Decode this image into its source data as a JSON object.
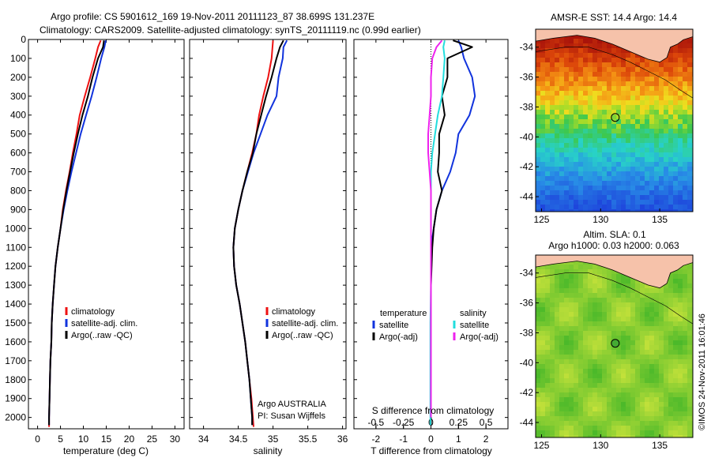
{
  "header": {
    "title_line1": "Argo profile: CS 5901612_169 19-Nov-2011 20111123_87 38.699S 131.237E",
    "title_line2": "Climatology: CARS2009. Satellite-adjusted climatology: synTS_20111119.nc (0.99d earlier)"
  },
  "side_text": "©IMOS 24-Nov-2011 16:01:46",
  "colors": {
    "climatology": "#ee1111",
    "satellite": "#1133dd",
    "argo": "#000000",
    "salinity_satellite": "#22dddd",
    "salinity_argo": "#ee22ee",
    "land": "#f6c2aa"
  },
  "chart_data": [
    {
      "id": "temperature",
      "type": "line",
      "xlabel": "temperature (deg C)",
      "x_ticks": [
        0,
        5,
        10,
        15,
        20,
        25,
        30
      ],
      "y_ticks": [
        0,
        100,
        200,
        300,
        400,
        500,
        600,
        700,
        800,
        900,
        1000,
        1100,
        1200,
        1300,
        1400,
        1500,
        1600,
        1700,
        1800,
        1900,
        2000
      ],
      "xlim": [
        -2,
        32
      ],
      "ylim": [
        0,
        2060
      ],
      "y_reversed": true,
      "legend": [
        "climatology",
        "satellite-adj. clim.",
        "Argo(..raw -QC)"
      ],
      "series": [
        {
          "name": "climatology",
          "color": "#ee1111",
          "points": [
            [
              13.8,
              5
            ],
            [
              13.2,
              40
            ],
            [
              12.6,
              100
            ],
            [
              11.5,
              200
            ],
            [
              10.3,
              300
            ],
            [
              9.2,
              400
            ],
            [
              8.5,
              500
            ],
            [
              7.7,
              600
            ],
            [
              7.0,
              700
            ],
            [
              6.2,
              800
            ],
            [
              5.5,
              900
            ],
            [
              5.0,
              1000
            ],
            [
              4.4,
              1100
            ],
            [
              3.9,
              1200
            ],
            [
              3.6,
              1300
            ],
            [
              3.3,
              1400
            ],
            [
              3.1,
              1500
            ],
            [
              3.0,
              1600
            ],
            [
              2.8,
              1700
            ],
            [
              2.7,
              1800
            ],
            [
              2.6,
              1900
            ],
            [
              2.5,
              2000
            ],
            [
              2.5,
              2050
            ]
          ]
        },
        {
          "name": "satellite-adj. clim.",
          "color": "#1133dd",
          "points": [
            [
              14.9,
              5
            ],
            [
              14.6,
              40
            ],
            [
              13.9,
              100
            ],
            [
              12.9,
              200
            ],
            [
              11.8,
              300
            ],
            [
              10.6,
              400
            ],
            [
              9.4,
              500
            ],
            [
              8.4,
              600
            ],
            [
              7.4,
              700
            ],
            [
              6.5,
              800
            ],
            [
              5.7,
              900
            ],
            [
              5.0,
              1000
            ],
            [
              4.4,
              1100
            ],
            [
              3.9,
              1200
            ],
            [
              3.6,
              1300
            ],
            [
              3.3,
              1400
            ],
            [
              3.1,
              1500
            ],
            [
              3.0,
              1600
            ],
            [
              2.8,
              1700
            ],
            [
              2.7,
              1800
            ],
            [
              2.6,
              1900
            ],
            [
              2.5,
              2000
            ],
            [
              2.5,
              2040
            ]
          ]
        },
        {
          "name": "Argo(..raw -QC)",
          "color": "#000000",
          "points": [
            [
              14.5,
              5
            ],
            [
              14.3,
              40
            ],
            [
              13.2,
              100
            ],
            [
              12.0,
              200
            ],
            [
              11.0,
              300
            ],
            [
              9.8,
              400
            ],
            [
              8.8,
              500
            ],
            [
              7.9,
              600
            ],
            [
              7.1,
              700
            ],
            [
              6.3,
              800
            ],
            [
              5.6,
              900
            ],
            [
              5.0,
              1000
            ],
            [
              4.4,
              1100
            ],
            [
              3.9,
              1200
            ],
            [
              3.6,
              1300
            ],
            [
              3.3,
              1400
            ],
            [
              3.1,
              1500
            ],
            [
              3.0,
              1600
            ],
            [
              2.8,
              1700
            ],
            [
              2.7,
              1800
            ],
            [
              2.6,
              1900
            ],
            [
              2.5,
              2000
            ],
            [
              2.5,
              2040
            ]
          ]
        }
      ]
    },
    {
      "id": "salinity",
      "type": "line",
      "xlabel": "salinity",
      "x_ticks": [
        34,
        34.5,
        35,
        35.5,
        36
      ],
      "x_tick_labels": [
        "34",
        "34.5",
        "35",
        "35.5",
        "36"
      ],
      "xlim": [
        33.8,
        36.05
      ],
      "ylim": [
        0,
        2060
      ],
      "y_reversed": true,
      "legend": [
        "climatology",
        "satellite-adj. clim.",
        "Argo(..raw -QC)"
      ],
      "annotation": [
        "Argo AUSTRALIA",
        "PI: Susan Wijffels"
      ],
      "series": [
        {
          "name": "climatology",
          "color": "#ee1111",
          "points": [
            [
              35.0,
              5
            ],
            [
              34.98,
              100
            ],
            [
              34.93,
              200
            ],
            [
              34.86,
              300
            ],
            [
              34.8,
              400
            ],
            [
              34.76,
              500
            ],
            [
              34.7,
              600
            ],
            [
              34.63,
              700
            ],
            [
              34.56,
              800
            ],
            [
              34.5,
              900
            ],
            [
              34.45,
              1000
            ],
            [
              34.43,
              1100
            ],
            [
              34.44,
              1200
            ],
            [
              34.47,
              1300
            ],
            [
              34.52,
              1400
            ],
            [
              34.56,
              1500
            ],
            [
              34.6,
              1600
            ],
            [
              34.63,
              1700
            ],
            [
              34.66,
              1800
            ],
            [
              34.69,
              1900
            ],
            [
              34.71,
              2000
            ],
            [
              34.72,
              2050
            ]
          ]
        },
        {
          "name": "satellite-adj. clim.",
          "color": "#1133dd",
          "points": [
            [
              35.2,
              5
            ],
            [
              35.15,
              40
            ],
            [
              35.14,
              100
            ],
            [
              35.08,
              200
            ],
            [
              35.05,
              300
            ],
            [
              34.92,
              400
            ],
            [
              34.82,
              500
            ],
            [
              34.72,
              600
            ],
            [
              34.64,
              700
            ],
            [
              34.56,
              800
            ],
            [
              34.5,
              900
            ],
            [
              34.45,
              1000
            ],
            [
              34.43,
              1100
            ],
            [
              34.44,
              1200
            ],
            [
              34.47,
              1300
            ],
            [
              34.52,
              1400
            ],
            [
              34.56,
              1500
            ],
            [
              34.6,
              1600
            ],
            [
              34.63,
              1700
            ],
            [
              34.66,
              1800
            ],
            [
              34.68,
              1900
            ],
            [
              34.7,
              2000
            ],
            [
              34.7,
              2040
            ]
          ]
        },
        {
          "name": "Argo(..raw -QC)",
          "color": "#000000",
          "points": [
            [
              35.15,
              5
            ],
            [
              35.1,
              40
            ],
            [
              35.05,
              100
            ],
            [
              34.98,
              200
            ],
            [
              34.9,
              300
            ],
            [
              34.83,
              400
            ],
            [
              34.76,
              500
            ],
            [
              34.71,
              600
            ],
            [
              34.63,
              700
            ],
            [
              34.56,
              800
            ],
            [
              34.5,
              900
            ],
            [
              34.45,
              1000
            ],
            [
              34.43,
              1100
            ],
            [
              34.44,
              1200
            ],
            [
              34.47,
              1300
            ],
            [
              34.52,
              1400
            ],
            [
              34.56,
              1500
            ],
            [
              34.6,
              1600
            ],
            [
              34.63,
              1700
            ],
            [
              34.66,
              1800
            ],
            [
              34.68,
              1900
            ],
            [
              34.7,
              2000
            ],
            [
              34.7,
              2040
            ]
          ]
        }
      ]
    },
    {
      "id": "difference",
      "type": "line",
      "xlabel": "T difference from climatology",
      "x_ticks": [
        -2,
        -1,
        0,
        1,
        2
      ],
      "x2label": "S difference from climatology",
      "x2_ticks": [
        -0.5,
        -0.25,
        0,
        0.25,
        0.5
      ],
      "x2_tick_labels": [
        "-0.5",
        "-0.25",
        "0",
        "0.25",
        "0.5"
      ],
      "xlim": [
        -2.8,
        2.8
      ],
      "ylim": [
        0,
        2060
      ],
      "y_reversed": true,
      "legend_temperature_title": "temperature",
      "legend_salinity_title": "salinity",
      "legend_temperature": [
        "satellite",
        "Argo(-adj)"
      ],
      "legend_salinity": [
        "satellite",
        "Argo(-adj)"
      ],
      "series": [
        {
          "name": "satellite",
          "color": "#1133dd",
          "points": [
            [
              1.0,
              5
            ],
            [
              1.1,
              40
            ],
            [
              1.2,
              100
            ],
            [
              1.5,
              200
            ],
            [
              1.6,
              300
            ],
            [
              1.4,
              400
            ],
            [
              1.0,
              500
            ],
            [
              0.9,
              600
            ],
            [
              0.7,
              700
            ],
            [
              0.4,
              800
            ],
            [
              0.2,
              900
            ],
            [
              0.1,
              1000
            ],
            [
              0.0,
              1100
            ],
            [
              0.0,
              1300
            ],
            [
              0.0,
              1600
            ],
            [
              0.0,
              2000
            ],
            [
              0.0,
              2040
            ]
          ]
        },
        {
          "name": "Argo(-adj)",
          "color": "#000000",
          "points": [
            [
              0.8,
              5
            ],
            [
              1.5,
              40
            ],
            [
              0.6,
              100
            ],
            [
              0.6,
              200
            ],
            [
              0.4,
              300
            ],
            [
              0.5,
              400
            ],
            [
              0.3,
              500
            ],
            [
              0.3,
              600
            ],
            [
              0.25,
              700
            ],
            [
              0.4,
              800
            ],
            [
              0.2,
              900
            ],
            [
              0.1,
              1000
            ],
            [
              0.05,
              1100
            ],
            [
              0.0,
              1300
            ],
            [
              0.0,
              1600
            ],
            [
              0.0,
              2000
            ],
            [
              0.0,
              2040
            ]
          ]
        },
        {
          "name": "satellite",
          "color": "#22dddd",
          "points": [
            [
              0.5,
              5
            ],
            [
              0.45,
              40
            ],
            [
              0.5,
              100
            ],
            [
              0.45,
              200
            ],
            [
              0.4,
              300
            ],
            [
              0.25,
              400
            ],
            [
              0.15,
              500
            ],
            [
              0.05,
              600
            ],
            [
              0.0,
              700
            ],
            [
              0.0,
              800
            ],
            [
              0.0,
              900
            ],
            [
              0.0,
              1000
            ],
            [
              0.0,
              1100
            ],
            [
              0.0,
              1300
            ],
            [
              -0.02,
              1500
            ],
            [
              -0.02,
              1800
            ],
            [
              -0.02,
              2000
            ],
            [
              -0.02,
              2040
            ]
          ]
        },
        {
          "name": "Argo(-adj)",
          "color": "#ee22ee",
          "points": [
            [
              0.4,
              5
            ],
            [
              0.2,
              40
            ],
            [
              0.05,
              100
            ],
            [
              0.0,
              200
            ],
            [
              0.0,
              300
            ],
            [
              -0.05,
              400
            ],
            [
              -0.1,
              500
            ],
            [
              -0.1,
              600
            ],
            [
              -0.05,
              700
            ],
            [
              0.0,
              800
            ],
            [
              0.0,
              900
            ],
            [
              0.0,
              1000
            ],
            [
              0.0,
              1100
            ],
            [
              0.0,
              1300
            ],
            [
              0.0,
              1600
            ],
            [
              0.0,
              2000
            ]
          ]
        }
      ]
    },
    {
      "id": "sst-map",
      "type": "heatmap",
      "title": "AMSR-E SST: 14.4 Argo: 14.4",
      "x_ticks": [
        125,
        130,
        135
      ],
      "y_ticks": [
        -34,
        -36,
        -38,
        -40,
        -42,
        -44
      ],
      "xlim": [
        124.5,
        137.8
      ],
      "ylim": [
        -45.0,
        -32.8
      ],
      "argo_position": [
        131.237,
        -38.699
      ]
    },
    {
      "id": "sla-map",
      "type": "heatmap",
      "title": "Altim. SLA: 0.1",
      "subtitle": "Argo h1000: 0.03 h2000: 0.063",
      "x_ticks": [
        125,
        130,
        135
      ],
      "y_ticks": [
        -34,
        -36,
        -38,
        -40,
        -42,
        -44
      ],
      "xlim": [
        124.5,
        137.8
      ],
      "ylim": [
        -45.0,
        -32.8
      ],
      "argo_position": [
        131.237,
        -38.699
      ]
    }
  ]
}
